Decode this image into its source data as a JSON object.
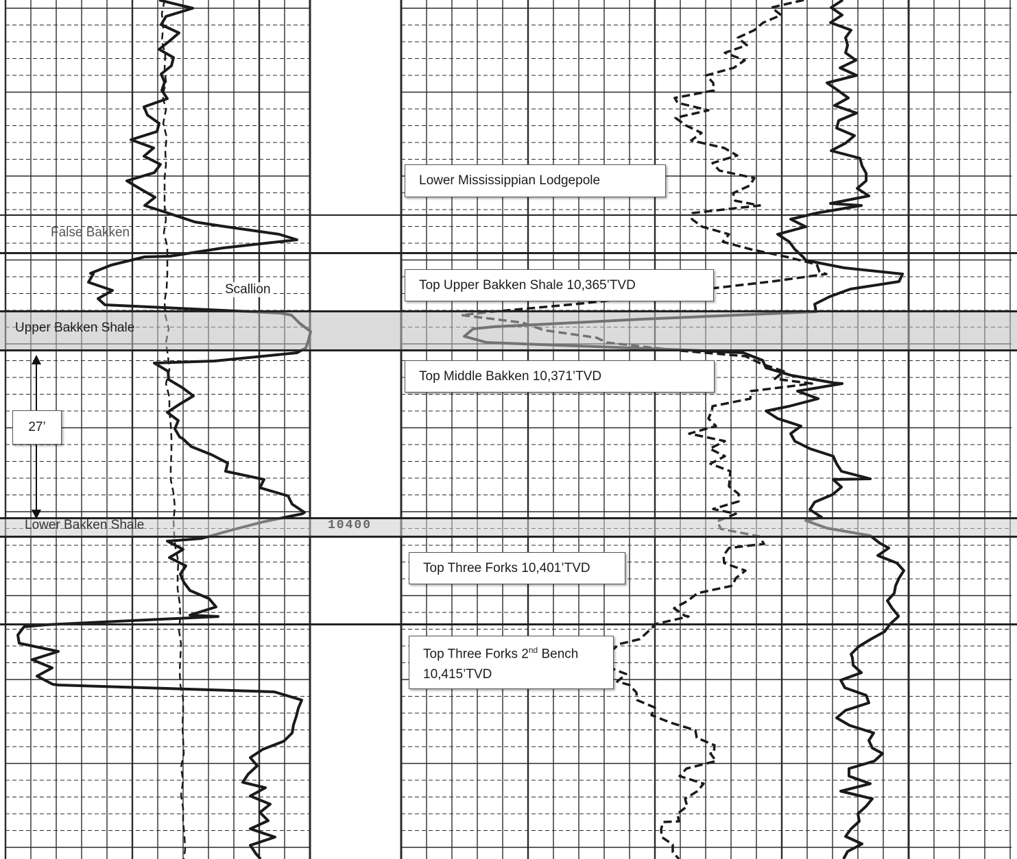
{
  "figure": {
    "labels": {
      "false_bakken": "False Bakken",
      "scallion": "Scallion",
      "upper_bakken_shale": "Upper Bakken Shale",
      "thickness": "27’",
      "lower_bakken_shale": "Lower Bakken Shale",
      "depth_marker": "10400"
    },
    "tops": {
      "lodgepole": "Lower Mississippian Lodgepole",
      "upper_bakken": "Top Upper Bakken Shale 10,365’TVD",
      "middle_bakken": "Top Middle Bakken 10,371’TVD",
      "three_forks": "Top Three Forks 10,401’TVD",
      "second_bench_line1_pre": "Top Three Forks 2",
      "second_bench_sup": "nd",
      "second_bench_line1_post": " Bench",
      "second_bench_line2": "10,415’TVD"
    },
    "colors": {
      "curve": "#1a1a1a",
      "grid": "#2a2a2a",
      "shale_band": "#bebebe"
    }
  }
}
